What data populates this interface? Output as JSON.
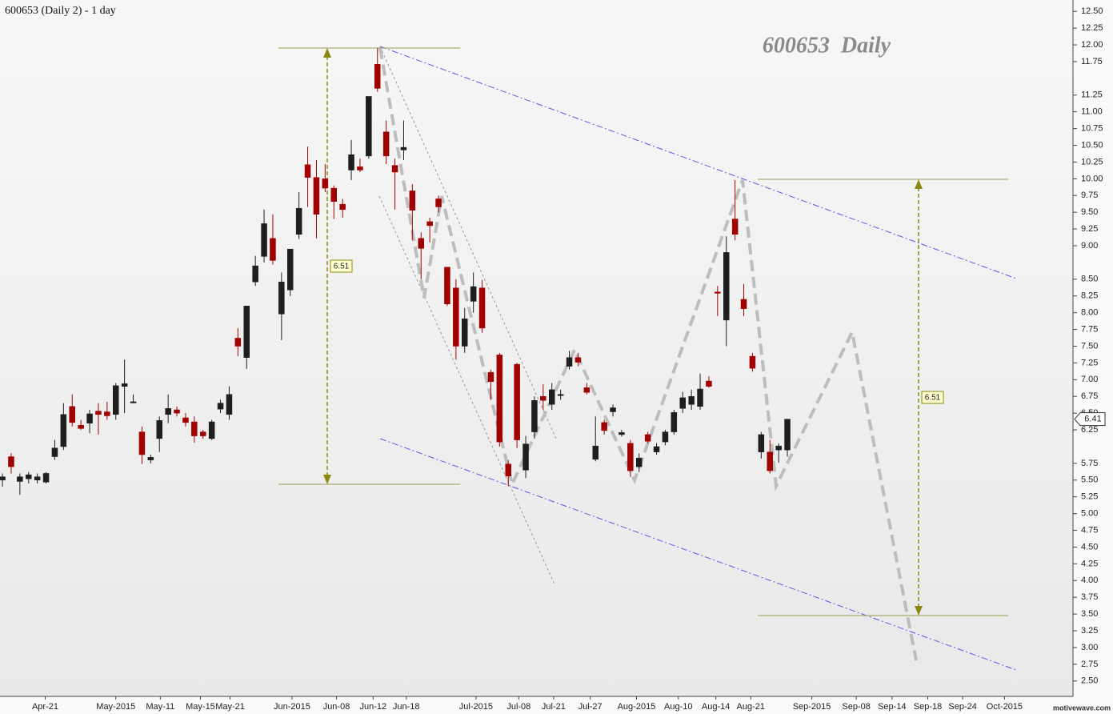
{
  "chart_data": {
    "type": "candlestick",
    "title": "600653 (Daily 2) - 1 day",
    "watermark": "600653  Daily",
    "brand": "motivewave.com",
    "annotations": [
      "6.51",
      "6.51"
    ],
    "last_price": 6.41,
    "up_color": "#1e1e1e",
    "down_color": "#a00000",
    "x": [
      0,
      1,
      2,
      3,
      4,
      5,
      6,
      7,
      8,
      9,
      10,
      11,
      12,
      13,
      14,
      15,
      16,
      17,
      18,
      19,
      20,
      21,
      22,
      23,
      24,
      25,
      26,
      27,
      28,
      29,
      30,
      31,
      32,
      33,
      34,
      35,
      36,
      37,
      38,
      39,
      40,
      41,
      42,
      43,
      44,
      45,
      46,
      47,
      48,
      49,
      50,
      51,
      52,
      53,
      54,
      55,
      56,
      57,
      58,
      59,
      60,
      61,
      62,
      63,
      64,
      65,
      66,
      67,
      68,
      69,
      70,
      71,
      72,
      73,
      74,
      75,
      76,
      77,
      78,
      79,
      80,
      81,
      82,
      83,
      84,
      85,
      86,
      87,
      88,
      89,
      90
    ],
    "open": [
      5.5,
      5.85,
      5.48,
      5.52,
      5.5,
      5.47,
      5.85,
      6.0,
      6.6,
      6.32,
      6.35,
      6.53,
      6.52,
      6.48,
      6.9,
      6.66,
      6.22,
      5.8,
      6.12,
      6.48,
      6.55,
      6.43,
      6.37,
      6.22,
      6.12,
      6.56,
      6.48,
      7.62,
      7.33,
      8.46,
      8.84,
      9.11,
      7.98,
      8.34,
      9.17,
      10.21,
      10.02,
      10.0,
      9.86,
      9.62,
      10.13,
      10.18,
      10.34,
      11.71,
      10.7,
      10.2,
      10.43,
      9.82,
      9.11,
      9.36,
      9.7,
      8.68,
      8.37,
      7.5,
      8.17,
      8.37,
      7.11,
      7.37,
      5.74,
      7.23,
      5.65,
      6.22,
      6.75,
      6.63,
      6.77,
      7.2,
      7.33,
      6.88,
      5.81,
      6.36,
      6.52,
      6.18,
      6.05,
      5.7,
      6.18,
      5.92,
      6.07,
      6.22,
      6.57,
      6.63,
      6.6,
      6.98,
      8.31,
      7.89,
      9.4,
      8.2,
      7.35,
      5.92,
      5.92,
      5.95,
      5.95
    ],
    "high": [
      5.6,
      5.9,
      5.6,
      5.62,
      5.6,
      5.62,
      6.1,
      6.65,
      6.78,
      6.4,
      6.55,
      6.65,
      6.67,
      6.95,
      7.3,
      6.78,
      6.3,
      5.88,
      6.45,
      6.78,
      6.6,
      6.5,
      6.45,
      6.25,
      6.4,
      6.7,
      6.9,
      7.77,
      8.1,
      8.85,
      9.54,
      9.47,
      8.6,
      8.95,
      9.8,
      10.48,
      10.28,
      10.22,
      9.9,
      9.7,
      10.58,
      10.3,
      11.23,
      11.95,
      10.87,
      10.3,
      10.87,
      9.92,
      9.2,
      9.42,
      9.75,
      8.68,
      8.5,
      8.07,
      8.6,
      8.49,
      7.15,
      7.4,
      5.8,
      7.25,
      6.16,
      6.75,
      6.93,
      6.95,
      6.85,
      7.43,
      7.4,
      6.95,
      6.45,
      6.4,
      6.63,
      6.25,
      6.1,
      5.9,
      6.22,
      6.05,
      6.25,
      6.55,
      6.82,
      6.85,
      7.09,
      7.05,
      8.4,
      9.14,
      9.98,
      8.43,
      7.4,
      6.22,
      6.1,
      6.05,
      6.41
    ],
    "low": [
      5.4,
      5.6,
      5.28,
      5.45,
      5.45,
      5.45,
      5.8,
      5.95,
      6.3,
      6.25,
      6.2,
      6.18,
      6.4,
      6.4,
      6.5,
      6.66,
      5.74,
      5.75,
      5.92,
      6.35,
      6.45,
      6.3,
      6.06,
      6.12,
      6.1,
      6.5,
      6.4,
      7.35,
      7.16,
      8.4,
      8.75,
      8.72,
      7.59,
      8.25,
      9.1,
      9.58,
      9.11,
      9.8,
      9.4,
      9.42,
      9.98,
      10.1,
      10.3,
      11.3,
      10.22,
      9.54,
      10.28,
      9.08,
      8.5,
      9.05,
      9.5,
      8.1,
      7.3,
      7.4,
      8.0,
      7.7,
      6.7,
      6.0,
      5.41,
      5.98,
      5.53,
      6.12,
      6.55,
      6.55,
      6.7,
      7.15,
      7.2,
      6.78,
      5.78,
      6.18,
      6.45,
      6.15,
      5.55,
      5.62,
      6.05,
      5.88,
      6.02,
      6.18,
      6.5,
      6.55,
      6.55,
      6.88,
      7.95,
      7.5,
      9.08,
      7.95,
      7.12,
      5.82,
      5.6,
      5.76,
      5.85
    ],
    "close": [
      5.55,
      5.7,
      5.55,
      5.58,
      5.55,
      5.6,
      5.98,
      6.48,
      6.36,
      6.27,
      6.49,
      6.48,
      6.46,
      6.91,
      6.94,
      6.67,
      5.88,
      5.84,
      6.39,
      6.57,
      6.5,
      6.36,
      6.16,
      6.16,
      6.37,
      6.65,
      6.78,
      7.5,
      8.1,
      8.7,
      9.33,
      8.78,
      8.46,
      8.95,
      9.56,
      10.02,
      9.47,
      9.86,
      9.66,
      9.54,
      10.36,
      10.13,
      11.23,
      11.35,
      10.34,
      10.1,
      10.47,
      9.53,
      8.96,
      9.3,
      9.58,
      8.13,
      7.5,
      7.91,
      8.39,
      7.77,
      6.97,
      6.07,
      5.56,
      6.1,
      6.04,
      6.69,
      6.69,
      6.85,
      6.78,
      7.33,
      7.26,
      6.81,
      6.01,
      6.24,
      6.58,
      6.21,
      5.64,
      5.83,
      6.08,
      6.0,
      6.22,
      6.51,
      6.73,
      6.75,
      6.86,
      6.9,
      8.29,
      8.9,
      9.17,
      8.06,
      7.17,
      6.18,
      5.64,
      6.01,
      6.41
    ],
    "xlim": [
      -0.28,
      122.75
    ],
    "xticks": [
      {
        "value": 4.9,
        "label": "Apr-21"
      },
      {
        "value": 13.0,
        "label": "May-2015"
      },
      {
        "value": 18.1,
        "label": "May-11"
      },
      {
        "value": 22.7,
        "label": "May-15"
      },
      {
        "value": 26.1,
        "label": "May-21"
      },
      {
        "value": 33.2,
        "label": "Jun-2015"
      },
      {
        "value": 38.3,
        "label": "Jun-08"
      },
      {
        "value": 42.5,
        "label": "Jun-12"
      },
      {
        "value": 46.3,
        "label": "Jun-18"
      },
      {
        "value": 54.3,
        "label": "Jul-2015"
      },
      {
        "value": 59.2,
        "label": "Jul-08"
      },
      {
        "value": 63.2,
        "label": "Jul-21"
      },
      {
        "value": 67.4,
        "label": "Jul-27"
      },
      {
        "value": 72.7,
        "label": "Aug-2015"
      },
      {
        "value": 77.5,
        "label": "Aug-10"
      },
      {
        "value": 81.8,
        "label": "Aug-14"
      },
      {
        "value": 85.8,
        "label": "Aug-21"
      },
      {
        "value": 92.8,
        "label": "Sep-2015"
      },
      {
        "value": 97.9,
        "label": "Sep-08"
      },
      {
        "value": 102.0,
        "label": "Sep-14"
      },
      {
        "value": 106.1,
        "label": "Sep-18"
      },
      {
        "value": 110.1,
        "label": "Sep-24"
      },
      {
        "value": 114.9,
        "label": "Oct-2015"
      }
    ],
    "ylim": [
      2.27,
      12.67
    ],
    "yticks": [
      {
        "value": 12.5,
        "label": "12.50"
      },
      {
        "value": 12.25,
        "label": "12.25"
      },
      {
        "value": 12,
        "label": "12.00"
      },
      {
        "value": 11.75,
        "label": "11.75"
      },
      {
        "value": 11.25,
        "label": "11.25"
      },
      {
        "value": 11,
        "label": "11.00"
      },
      {
        "value": 10.75,
        "label": "10.75"
      },
      {
        "value": 10.5,
        "label": "10.50"
      },
      {
        "value": 10.25,
        "label": "10.25"
      },
      {
        "value": 10,
        "label": "10.00"
      },
      {
        "value": 9.75,
        "label": "9.75"
      },
      {
        "value": 9.5,
        "label": "9.50"
      },
      {
        "value": 9.25,
        "label": "9.25"
      },
      {
        "value": 9,
        "label": "9.00"
      },
      {
        "value": 8.5,
        "label": "8.50"
      },
      {
        "value": 8.25,
        "label": "8.25"
      },
      {
        "value": 8,
        "label": "8.00"
      },
      {
        "value": 7.75,
        "label": "7.75"
      },
      {
        "value": 7.5,
        "label": "7.50"
      },
      {
        "value": 7.25,
        "label": "7.25"
      },
      {
        "value": 7,
        "label": "7.00"
      },
      {
        "value": 6.75,
        "label": "6.75"
      },
      {
        "value": 6.5,
        "label": "6.50"
      },
      {
        "value": 6.25,
        "label": "6.25"
      },
      {
        "value": 5.75,
        "label": "5.75"
      },
      {
        "value": 5.5,
        "label": "5.50"
      },
      {
        "value": 5.25,
        "label": "5.25"
      },
      {
        "value": 5,
        "label": "5.00"
      },
      {
        "value": 4.75,
        "label": "4.75"
      },
      {
        "value": 4.5,
        "label": "4.50"
      },
      {
        "value": 4.25,
        "label": "4.25"
      },
      {
        "value": 4,
        "label": "4.00"
      },
      {
        "value": 3.75,
        "label": "3.75"
      },
      {
        "value": 3.5,
        "label": "3.50"
      },
      {
        "value": 3.25,
        "label": "3.25"
      },
      {
        "value": 3,
        "label": "3.00"
      },
      {
        "value": 2.75,
        "label": "2.75"
      },
      {
        "value": 2.5,
        "label": "2.50"
      }
    ]
  }
}
